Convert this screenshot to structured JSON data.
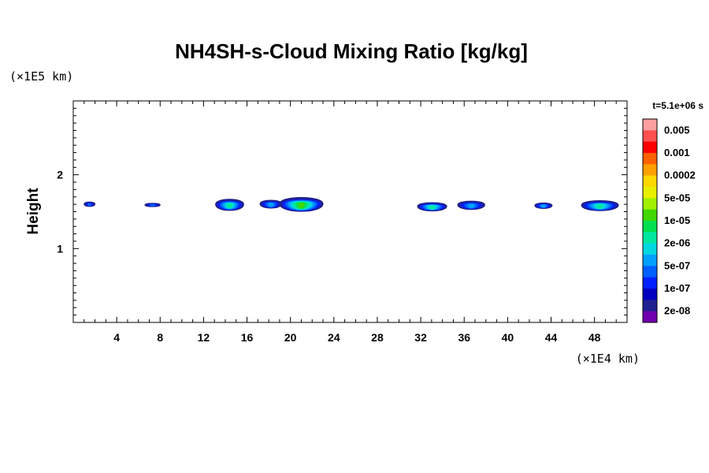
{
  "chart_data": {
    "type": "heatmap",
    "title": "NH4SH-s-Cloud Mixing Ratio [kg/kg]",
    "ylabel": "Height",
    "y_unit": "(×1E5 km)",
    "x_unit": "(×1E4 km)",
    "time_label": "t=5.1e+06 s",
    "xlim": [
      0,
      51
    ],
    "ylim": [
      0,
      3
    ],
    "x_ticks": [
      4,
      8,
      12,
      16,
      20,
      24,
      28,
      32,
      36,
      40,
      44,
      48
    ],
    "y_ticks": [
      1,
      2
    ],
    "colorbar": {
      "labels": [
        "0.005",
        "0.001",
        "0.0002",
        "5e-05",
        "1e-05",
        "2e-06",
        "5e-07",
        "1e-07",
        "2e-08"
      ],
      "colors": [
        "#ffa0a0",
        "#ff5050",
        "#ff0000",
        "#ff6000",
        "#ffa000",
        "#ffd800",
        "#e8f000",
        "#a0f000",
        "#40d800",
        "#00e050",
        "#00e8a0",
        "#00d8e0",
        "#00a0ff",
        "#0060ff",
        "#0020ff",
        "#0000c0",
        "#202090",
        "#7000b0"
      ]
    },
    "cloud_patches": [
      {
        "x": [
          1.0,
          2.0
        ],
        "y": [
          1.57,
          1.63
        ],
        "peak": "1e-07"
      },
      {
        "x": [
          6.6,
          8.0
        ],
        "y": [
          1.57,
          1.61
        ],
        "peak": "1e-07"
      },
      {
        "x": [
          13.1,
          15.7
        ],
        "y": [
          1.5,
          1.68
        ],
        "peak": "2e-06"
      },
      {
        "x": [
          17.2,
          19.2
        ],
        "y": [
          1.54,
          1.66
        ],
        "peak": "5e-07"
      },
      {
        "x": [
          19.0,
          23.0
        ],
        "y": [
          1.48,
          1.71
        ],
        "peak": "1e-05"
      },
      {
        "x": [
          31.7,
          34.4
        ],
        "y": [
          1.5,
          1.63
        ],
        "peak": "2e-06"
      },
      {
        "x": [
          35.4,
          37.9
        ],
        "y": [
          1.52,
          1.65
        ],
        "peak": "5e-07"
      },
      {
        "x": [
          42.5,
          44.1
        ],
        "y": [
          1.54,
          1.62
        ],
        "peak": "5e-07"
      },
      {
        "x": [
          46.8,
          50.2
        ],
        "y": [
          1.5,
          1.66
        ],
        "peak": "2e-06"
      }
    ]
  }
}
